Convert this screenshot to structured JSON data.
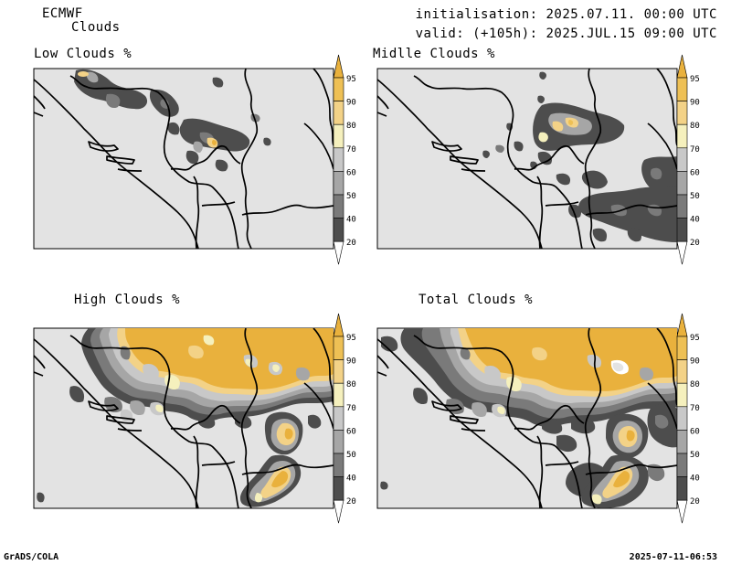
{
  "header": {
    "model": "ECMWF",
    "product": "Clouds",
    "initialisation": "initialisation: 2025.07.11. 00:00 UTC",
    "valid": "valid: (+105h): 2025.JUL.15 09:00 UTC"
  },
  "panels": [
    {
      "id": "low",
      "title": "Low Clouds %"
    },
    {
      "id": "middle",
      "title": "Midlle Clouds %"
    },
    {
      "id": "high",
      "title": "High Clouds %"
    },
    {
      "id": "total",
      "title": "Total Clouds %"
    }
  ],
  "legend": {
    "levels": [
      "20",
      "40",
      "50",
      "60",
      "70",
      "80",
      "90",
      "95"
    ],
    "colors": {
      "below20": "#ffffff",
      "20-40": "#4d4d4d",
      "40-50": "#7a7a7a",
      "50-60": "#a6a6a6",
      "60-70": "#c8c8c8",
      "70-80": "#f5f0bd",
      "80-90": "#f3d287",
      "90-95": "#eec055",
      "above95": "#e9b13d"
    }
  },
  "map_background": "#e3e3e3",
  "footer": {
    "left": "GrADS/COLA",
    "right": "2025-07-11-06:53"
  }
}
